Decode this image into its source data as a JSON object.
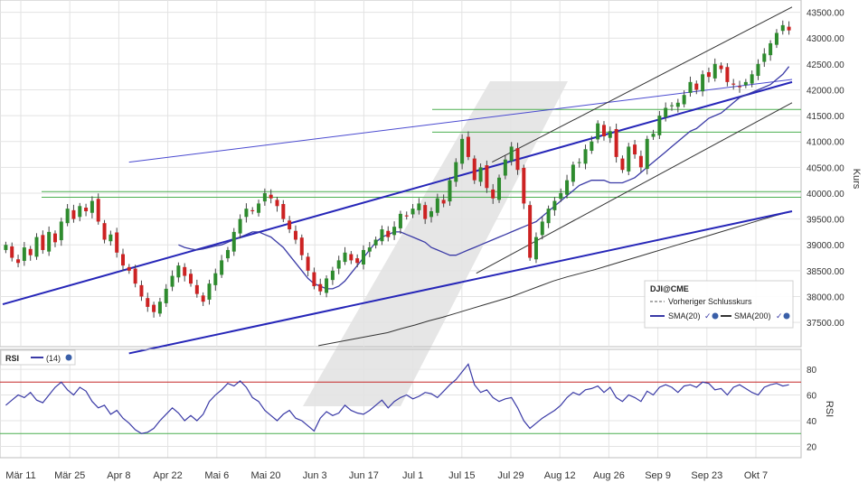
{
  "chart_data": {
    "type": "candlestick",
    "symbol": "DJI@CME",
    "x_ticks": [
      "Mär 11",
      "Mär 25",
      "Apr 8",
      "Apr 22",
      "Mai 6",
      "Mai 20",
      "Jun 3",
      "Jun 17",
      "Jul 1",
      "Jul 15",
      "Jul 29",
      "Aug 12",
      "Aug 26",
      "Sep 9",
      "Sep 23",
      "Okt 7"
    ],
    "price_panel": {
      "ylabel": "Kurs",
      "ylim": [
        37100,
        43650
      ],
      "y_ticks": [
        "37500.00",
        "38000.00",
        "38500.00",
        "39000.00",
        "39500.00",
        "40000.00",
        "40500.00",
        "41000.00",
        "41500.00",
        "42000.00",
        "42500.00",
        "43000.00",
        "43500.00"
      ],
      "y_tick_values": [
        37500,
        38000,
        38500,
        39000,
        39500,
        40000,
        40500,
        41000,
        41500,
        42000,
        42500,
        43000,
        43500
      ],
      "close_series": [
        39000,
        38750,
        38650,
        38950,
        38800,
        39150,
        38900,
        39250,
        39050,
        39450,
        39700,
        39500,
        39750,
        39650,
        39850,
        39450,
        39100,
        39200,
        38850,
        38600,
        38500,
        38250,
        38000,
        37800,
        37700,
        37900,
        38150,
        38400,
        38600,
        38400,
        38250,
        38050,
        37900,
        38250,
        38450,
        38700,
        38900,
        39250,
        39500,
        39700,
        39650,
        39800,
        40000,
        39900,
        39750,
        39500,
        39300,
        39100,
        38800,
        38500,
        38200,
        38100,
        38350,
        38500,
        38700,
        38850,
        38700,
        38650,
        38900,
        38950,
        39100,
        39300,
        39150,
        39350,
        39600,
        39550,
        39700,
        39800,
        39500,
        39650,
        39900,
        39800,
        40250,
        40600,
        41050,
        40700,
        40250,
        40500,
        40100,
        39900,
        40300,
        40650,
        40900,
        40450,
        39800,
        38750,
        39150,
        39450,
        39700,
        39850,
        40000,
        40250,
        40550,
        40600,
        40850,
        41000,
        41350,
        41100,
        41200,
        40700,
        40450,
        40900,
        40750,
        40500,
        41050,
        41150,
        41500,
        41650,
        41700,
        41750,
        41900,
        42150,
        42000,
        42300,
        42250,
        42500,
        42400,
        42150,
        42100,
        42050,
        42150,
        42300,
        42500,
        42700,
        42900,
        43100,
        43250,
        43150
      ],
      "sma20_series": [
        39000,
        38950,
        38920,
        38900,
        38920,
        38950,
        38980,
        39000,
        39050,
        39100,
        39150,
        39200,
        39250,
        39250,
        39200,
        39150,
        39050,
        38950,
        38800,
        38650,
        38500,
        38350,
        38250,
        38200,
        38150,
        38150,
        38200,
        38300,
        38450,
        38600,
        38750,
        38900,
        39050,
        39150,
        39200,
        39250,
        39250,
        39200,
        39150,
        39100,
        39050,
        38950,
        38900,
        38850,
        38800,
        38800,
        38850,
        38900,
        38950,
        39000,
        39050,
        39100,
        39150,
        39200,
        39250,
        39300,
        39350,
        39400,
        39450,
        39550,
        39650,
        39750,
        39850,
        39950,
        40050,
        40150,
        40200,
        40250,
        40250,
        40250,
        40200,
        40200,
        40200,
        40250,
        40300,
        40400,
        40500,
        40600,
        40700,
        40800,
        40900,
        41000,
        41100,
        41200,
        41250,
        41350,
        41450,
        41500,
        41550,
        41650,
        41750,
        41850,
        41900,
        41950,
        42000,
        42050,
        42100,
        42200,
        42300,
        42450
      ],
      "sma200_series": [
        37050,
        37100,
        37150,
        37200,
        37250,
        37300,
        37380,
        37450,
        37530,
        37600,
        37680,
        37760,
        37840,
        37920,
        38000,
        38100,
        38200,
        38300,
        38380,
        38450,
        38520,
        38600,
        38680,
        38760,
        38840,
        38920,
        39000,
        39080,
        39160,
        39240,
        39320,
        39400,
        39480,
        39560,
        39630
      ],
      "prev_close_series": [],
      "trendlines": [
        {
          "from": [
            0.16,
            36900
          ],
          "to": [
            1.0,
            39650
          ]
        },
        {
          "from": [
            0.16,
            40600
          ],
          "to": [
            1.0,
            42200
          ]
        },
        {
          "from": [
            0.6,
            38450
          ],
          "to": [
            1.0,
            41750
          ]
        },
        {
          "from": [
            0.62,
            40600
          ],
          "to": [
            1.0,
            43600
          ]
        },
        {
          "from": [
            0.0,
            37850
          ],
          "to": [
            1.0,
            42150
          ]
        }
      ],
      "horizontal_levels": [
        41620,
        41180,
        40030,
        39920
      ]
    },
    "legend": {
      "position": "bottom-right",
      "entries": [
        {
          "label": "DJI@CME",
          "kind": "title"
        },
        {
          "label": "Vorheriger Schlusskurs",
          "kind": "dashed",
          "color": "#555555"
        },
        {
          "label": "SMA(20)",
          "kind": "line",
          "color": "#3a3aa6"
        },
        {
          "label": "SMA(200)",
          "kind": "line",
          "color": "#333333"
        }
      ]
    },
    "rsi_panel": {
      "label": "RSI",
      "legend_entry": "(14)",
      "ylabel": "RSI",
      "ylim": [
        14,
        92
      ],
      "y_ticks": [
        "80",
        "60",
        "40",
        "20"
      ],
      "y_tick_values": [
        80,
        60,
        40,
        20
      ],
      "overbought": 70,
      "oversold": 30,
      "values": [
        52,
        56,
        60,
        58,
        62,
        56,
        54,
        60,
        66,
        70,
        64,
        60,
        66,
        63,
        55,
        50,
        52,
        45,
        48,
        42,
        38,
        33,
        30,
        31,
        34,
        40,
        45,
        50,
        46,
        40,
        44,
        40,
        45,
        55,
        60,
        64,
        69,
        67,
        71,
        66,
        58,
        55,
        48,
        44,
        40,
        45,
        48,
        42,
        40,
        36,
        32,
        42,
        47,
        44,
        46,
        52,
        48,
        46,
        45,
        48,
        52,
        56,
        50,
        55,
        58,
        60,
        57,
        59,
        62,
        61,
        58,
        63,
        68,
        72,
        78,
        84,
        68,
        62,
        64,
        58,
        55,
        57,
        58,
        50,
        40,
        34,
        38,
        42,
        45,
        48,
        52,
        58,
        62,
        60,
        64,
        65,
        67,
        62,
        66,
        58,
        55,
        60,
        58,
        55,
        63,
        60,
        66,
        68,
        66,
        62,
        67,
        68,
        66,
        70,
        69,
        64,
        65,
        60,
        66,
        68,
        65,
        62,
        60,
        66,
        68,
        69,
        67,
        68
      ]
    },
    "colors": {
      "up": "#2e8b2e",
      "down": "#cc2222",
      "sma20": "#3a3aa6",
      "sma200": "#333333",
      "trend_blue": "#2626b8",
      "level_green": "#4caf50",
      "rsi_line": "#3a3aa6",
      "rsi_over": "#c62828",
      "rsi_under": "#4caf50",
      "watermark": "#e6e6e6"
    }
  }
}
